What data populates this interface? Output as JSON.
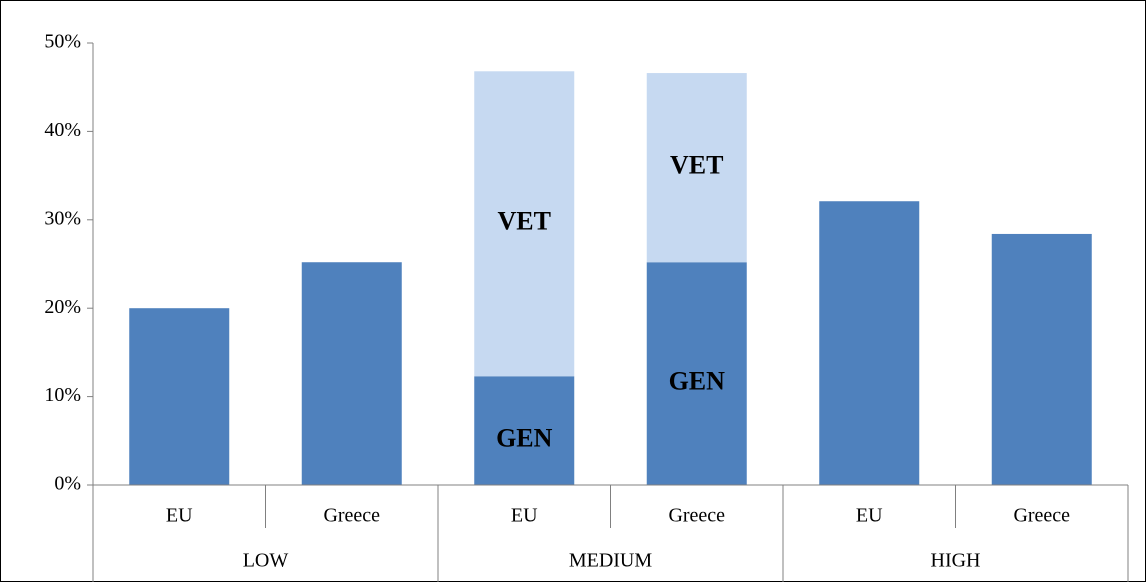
{
  "chart_data": {
    "type": "bar",
    "stacked": true,
    "categories": [
      "EU",
      "Greece",
      "EU",
      "Greece",
      "EU",
      "Greece"
    ],
    "groups": [
      "LOW",
      "MEDIUM",
      "HIGH"
    ],
    "series": [
      {
        "name": "GEN",
        "color": "#4f81bd",
        "values": [
          20.0,
          25.2,
          12.3,
          25.2,
          32.1,
          28.4
        ]
      },
      {
        "name": "VET",
        "color": "#c6d9f1",
        "values": [
          null,
          null,
          34.5,
          21.4,
          null,
          null
        ]
      }
    ],
    "ylim": [
      0,
      50
    ],
    "yticks": [
      {
        "value": 0,
        "label": "0%"
      },
      {
        "value": 10,
        "label": "10%"
      },
      {
        "value": 20,
        "label": "20%"
      },
      {
        "value": 30,
        "label": "30%"
      },
      {
        "value": 40,
        "label": "40%"
      },
      {
        "value": 50,
        "label": "50%"
      }
    ],
    "grid": false
  }
}
